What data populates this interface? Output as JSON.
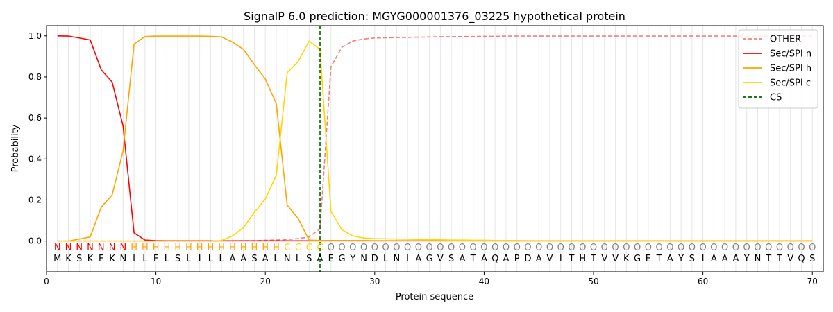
{
  "chart_data": {
    "type": "line",
    "title": "SignalP 6.0 prediction: MGYG000001376_03225 hypothetical protein",
    "xlabel": "Protein sequence",
    "ylabel": "Probability",
    "xlim": [
      0,
      71
    ],
    "ylim": [
      -0.15,
      1.05
    ],
    "x_ticks": [
      0,
      10,
      20,
      30,
      40,
      50,
      60,
      70
    ],
    "y_ticks": [
      0.0,
      0.2,
      0.4,
      0.6,
      0.8,
      1.0
    ],
    "x_tick_labels": [
      "0",
      "10",
      "20",
      "30",
      "40",
      "50",
      "60",
      "70"
    ],
    "y_tick_labels": [
      "0.0",
      "0.2",
      "0.4",
      "0.6",
      "0.8",
      "1.0"
    ],
    "legend_position": "top-right",
    "sequence": [
      "M",
      "K",
      "S",
      "K",
      "F",
      "K",
      "N",
      "I",
      "L",
      "F",
      "L",
      "S",
      "L",
      "I",
      "L",
      "L",
      "A",
      "A",
      "S",
      "A",
      "L",
      "N",
      "L",
      "S",
      "A",
      "E",
      "G",
      "Y",
      "N",
      "D",
      "L",
      "N",
      "I",
      "A",
      "G",
      "V",
      "S",
      "A",
      "T",
      "A",
      "Q",
      "A",
      "P",
      "D",
      "A",
      "V",
      "I",
      "T",
      "H",
      "T",
      "V",
      "V",
      "K",
      "G",
      "E",
      "T",
      "A",
      "Y",
      "S",
      "I",
      "A",
      "A",
      "A",
      "Y",
      "N",
      "T",
      "T",
      "V",
      "Q",
      "S"
    ],
    "labels": [
      "N",
      "N",
      "N",
      "N",
      "N",
      "N",
      "N",
      "H",
      "H",
      "H",
      "H",
      "H",
      "H",
      "H",
      "H",
      "H",
      "H",
      "H",
      "H",
      "H",
      "H",
      "C",
      "C",
      "C",
      "C",
      "O",
      "O",
      "O",
      "O",
      "O",
      "O",
      "O",
      "O",
      "O",
      "O",
      "O",
      "O",
      "O",
      "O",
      "O",
      "O",
      "O",
      "O",
      "O",
      "O",
      "O",
      "O",
      "O",
      "O",
      "O",
      "O",
      "O",
      "O",
      "O",
      "O",
      "O",
      "O",
      "O",
      "O",
      "O",
      "O",
      "O",
      "O",
      "O",
      "O",
      "O",
      "O",
      "O",
      "O",
      "O"
    ],
    "label_colors": {
      "N": "#ff0000",
      "H": "#ffa500",
      "C": "#ffd700",
      "O": "#808080"
    },
    "series": [
      {
        "name": "OTHER",
        "color": "#f08080",
        "dash": true,
        "values": [
          0,
          0,
          0,
          0,
          0,
          0,
          0,
          0,
          0,
          0,
          0,
          0,
          0,
          0,
          0,
          0.001,
          0.001,
          0.002,
          0.002,
          0.004,
          0.005,
          0.008,
          0.012,
          0.02,
          0.06,
          0.85,
          0.945,
          0.975,
          0.985,
          0.99,
          0.991,
          0.992,
          0.993,
          0.994,
          0.995,
          0.996,
          0.996,
          0.997,
          0.997,
          0.998,
          0.998,
          0.999,
          0.999,
          0.999,
          0.999,
          0.999,
          0.999,
          0.999,
          0.999,
          0.999,
          0.999,
          0.999,
          0.999,
          0.999,
          0.999,
          0.999,
          0.999,
          0.999,
          0.999,
          0.999,
          0.999,
          0.999,
          0.999,
          0.999,
          0.999,
          0.999,
          0.999,
          0.999,
          0.999,
          0.999
        ]
      },
      {
        "name": "Sec/SPI n",
        "color": "#ff0000",
        "dash": false,
        "values": [
          1.0,
          0.999,
          0.99,
          0.98,
          0.835,
          0.775,
          0.56,
          0.04,
          0.005,
          0.002,
          0.001,
          0.001,
          0.001,
          0.001,
          0.001,
          0.001,
          0.001,
          0.001,
          0.001,
          0.001,
          0.001,
          0.001,
          0.001,
          0.001,
          0.001,
          0.001,
          0.001,
          0.001,
          0.001,
          0.001,
          0.001,
          0.001,
          0.001,
          0.001,
          0.001,
          0.001,
          0.001,
          0.001,
          0.001,
          0.001,
          0.001,
          0.001,
          0.001,
          0.001,
          0.001,
          0.001,
          0.001,
          0.001,
          0.001,
          0.001,
          0.001,
          0.001,
          0.001,
          0.001,
          0.001,
          0.001,
          0.001,
          0.001,
          0.001,
          0.001,
          0.001,
          0.001,
          0.001,
          0.001,
          0.001,
          0.001,
          0.001,
          0.001,
          0.001,
          0.001
        ]
      },
      {
        "name": "Sec/SPI h",
        "color": "#ffa500",
        "dash": false,
        "values": [
          0,
          0,
          0.01,
          0.02,
          0.165,
          0.225,
          0.44,
          0.96,
          0.997,
          0.999,
          0.999,
          0.999,
          0.999,
          0.999,
          0.998,
          0.995,
          0.97,
          0.935,
          0.86,
          0.79,
          0.67,
          0.175,
          0.11,
          0.005,
          0.003,
          0.003,
          0.003,
          0.003,
          0.003,
          0.002,
          0.002,
          0.002,
          0.002,
          0.002,
          0.002,
          0.002,
          0.002,
          0.002,
          0.002,
          0.002,
          0.002,
          0.001,
          0.001,
          0.001,
          0.001,
          0.001,
          0.001,
          0.001,
          0.001,
          0.001,
          0.001,
          0.001,
          0.001,
          0.001,
          0.001,
          0.001,
          0.001,
          0.001,
          0.001,
          0.001,
          0.001,
          0.001,
          0.001,
          0.001,
          0.001,
          0.001,
          0.001,
          0.001,
          0.001,
          0.001
        ]
      },
      {
        "name": "Sec/SPI c",
        "color": "#ffd700",
        "dash": false,
        "values": [
          0,
          0,
          0,
          0,
          0,
          0,
          0,
          0,
          0,
          0,
          0,
          0,
          0,
          0,
          0,
          0.003,
          0.025,
          0.065,
          0.14,
          0.205,
          0.32,
          0.82,
          0.875,
          0.975,
          0.935,
          0.145,
          0.055,
          0.025,
          0.015,
          0.012,
          0.011,
          0.01,
          0.009,
          0.008,
          0.007,
          0.006,
          0.005,
          0.005,
          0.004,
          0.004,
          0.003,
          0.003,
          0.003,
          0.002,
          0.002,
          0.002,
          0.002,
          0.002,
          0.002,
          0.002,
          0.002,
          0.002,
          0.002,
          0.002,
          0.002,
          0.002,
          0.002,
          0.002,
          0.002,
          0.002,
          0.002,
          0.002,
          0.002,
          0.002,
          0.002,
          0.002,
          0.002,
          0.002,
          0.002,
          0.002
        ]
      }
    ],
    "cleavage_site": {
      "name": "CS",
      "x": 25,
      "color": "#006400"
    }
  }
}
